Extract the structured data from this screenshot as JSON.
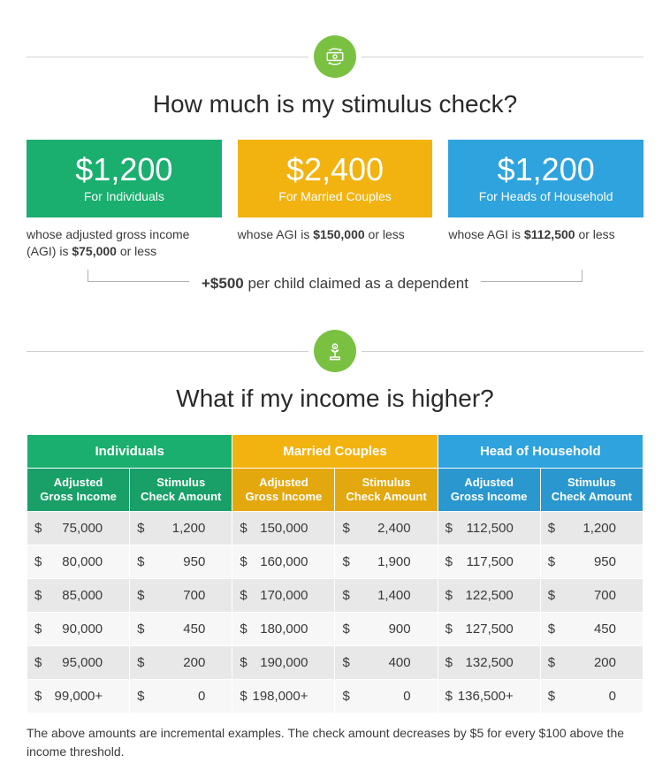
{
  "colors": {
    "green": "#1aae6f",
    "yellow": "#f2b311",
    "blue": "#2ea3dd",
    "green_dark": "#18a068",
    "yellow_dark": "#e4a80f",
    "blue_dark": "#2a97cf",
    "icon_bg": "#7ac142",
    "row_alt0": "#e8e8e8",
    "row_alt1": "#f7f7f7"
  },
  "section1": {
    "title": "How much is my stimulus check?",
    "cards": [
      {
        "amount": "$1,200",
        "for": "For Individuals",
        "desc_pre": "whose adjusted gross income (AGI) is ",
        "desc_bold": "$75,000",
        "desc_post": " or less",
        "color": "#1aae6f"
      },
      {
        "amount": "$2,400",
        "for": "For Married Couples",
        "desc_pre": "whose AGI is ",
        "desc_bold": "$150,000",
        "desc_post": " or less",
        "color": "#f2b311"
      },
      {
        "amount": "$1,200",
        "for": "For Heads of Household",
        "desc_pre": "whose AGI is ",
        "desc_bold": "$112,500",
        "desc_post": " or less",
        "color": "#2ea3dd"
      }
    ],
    "bracket_bold": "+$500",
    "bracket_rest": " per child claimed as a dependent"
  },
  "section2": {
    "title": "What if my income is higher?",
    "groups": [
      {
        "label": "Individuals",
        "bg": "#1aae6f",
        "sub_bg": "#18a068"
      },
      {
        "label": "Married Couples",
        "bg": "#f2b311",
        "sub_bg": "#e4a80f"
      },
      {
        "label": "Head of Household",
        "bg": "#2ea3dd",
        "sub_bg": "#2a97cf"
      }
    ],
    "sub_cols": [
      "Adjusted Gross Income",
      "Stimulus Check Amount"
    ],
    "rows": [
      [
        " 75,000",
        "1,200",
        "150,000",
        "2,400",
        "112,500",
        "1,200"
      ],
      [
        " 80,000",
        "950",
        "160,000",
        "1,900",
        "117,500",
        "950"
      ],
      [
        " 85,000",
        "700",
        "170,000",
        "1,400",
        "122,500",
        "700"
      ],
      [
        " 90,000",
        "450",
        "180,000",
        "900",
        "127,500",
        "450"
      ],
      [
        " 95,000",
        "200",
        "190,000",
        "400",
        "132,500",
        "200"
      ],
      [
        "99,000+",
        "0",
        "198,000+",
        "0",
        "136,500+",
        "0"
      ]
    ],
    "footnote": "The above amounts are incremental examples. The check amount decreases by $5 for every $100 above the income threshold."
  }
}
